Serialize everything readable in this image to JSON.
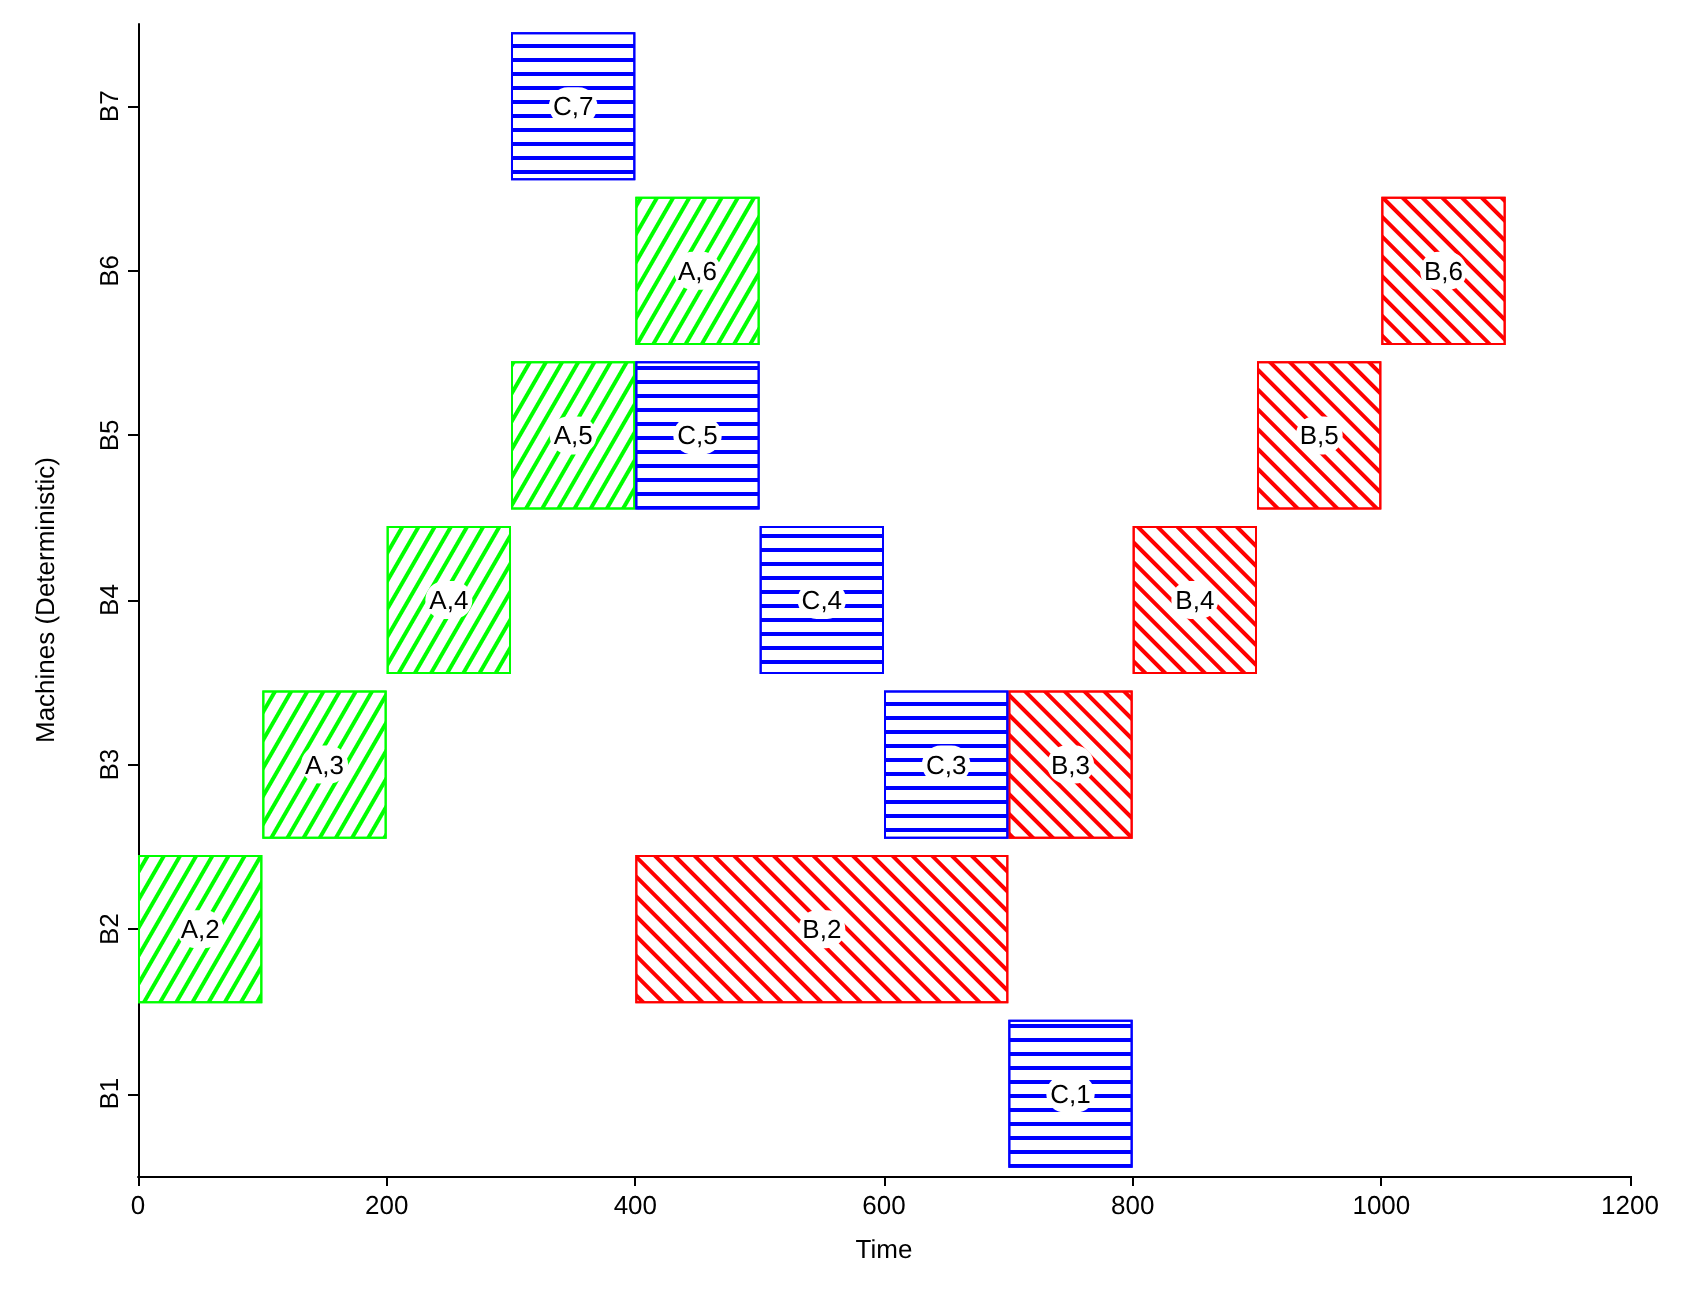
{
  "chart_data": {
    "type": "bar",
    "orientation": "horizontal",
    "xlabel": "Time",
    "ylabel": "Machines (Deterministic)",
    "categories": [
      "B7",
      "B6",
      "B5",
      "B4",
      "B3",
      "B2",
      "B1"
    ],
    "xlim": [
      0,
      1200
    ],
    "xticks": [
      0,
      200,
      400,
      600,
      800,
      1000,
      1200
    ],
    "series": [
      {
        "color": "#00ff00",
        "values": [
          null,
          100,
          100,
          100,
          100,
          100,
          null
        ],
        "base": [
          null,
          400,
          300,
          200,
          100,
          0,
          null
        ]
      },
      {
        "color": "#ff0000",
        "values": [
          null,
          100,
          100,
          100,
          100,
          300,
          null
        ],
        "base": [
          null,
          1000,
          900,
          800,
          700,
          400,
          null
        ]
      },
      {
        "color": "#0000ff",
        "values": [
          100,
          null,
          100,
          100,
          100,
          null,
          100
        ],
        "base": [
          300,
          null,
          400,
          500,
          600,
          null,
          700
        ]
      }
    ],
    "annotations": [
      {
        "text": "A,6",
        "x": 450,
        "y": "B6"
      },
      {
        "text": "A,5",
        "x": 350,
        "y": "B5"
      },
      {
        "text": "A,4",
        "x": 250,
        "y": "B4"
      },
      {
        "text": "A,3",
        "x": 150,
        "y": "B3"
      },
      {
        "text": "A,2",
        "x": 50,
        "y": "B2"
      },
      {
        "text": "B,6",
        "x": 1050,
        "y": "B6"
      },
      {
        "text": "B,5",
        "x": 950,
        "y": "B5"
      },
      {
        "text": "B,4",
        "x": 850,
        "y": "B4"
      },
      {
        "text": "B,3",
        "x": 750,
        "y": "B3"
      },
      {
        "text": "B,2",
        "x": 550,
        "y": "B2"
      },
      {
        "text": "C,7",
        "x": 350,
        "y": "B7"
      },
      {
        "text": "C,5",
        "x": 450,
        "y": "B5"
      },
      {
        "text": "C,4",
        "x": 550,
        "y": "B4"
      },
      {
        "text": "C,3",
        "x": 650,
        "y": "B3"
      },
      {
        "text": "C,1",
        "x": 750,
        "y": "B1"
      }
    ]
  }
}
